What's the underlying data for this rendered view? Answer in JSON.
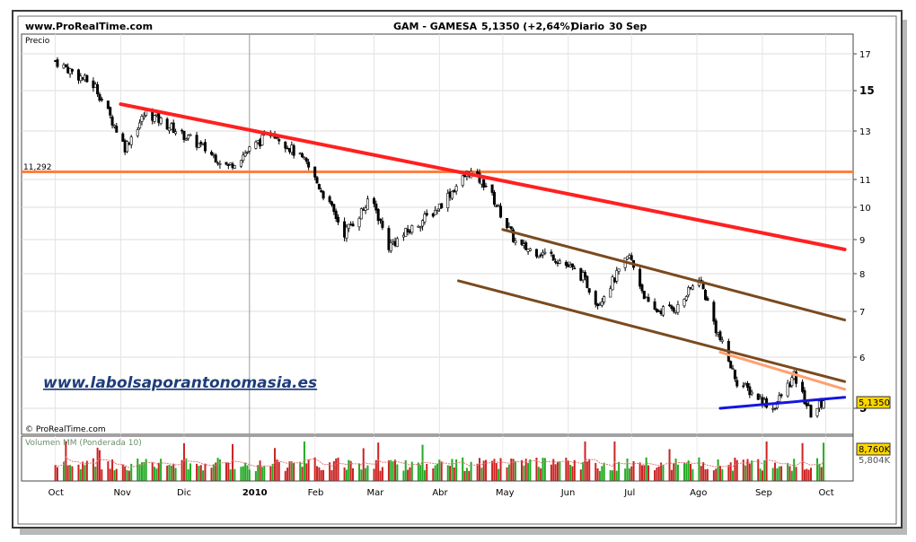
{
  "header": {
    "site": "www.ProRealTime.com",
    "instrument": "GAM - GAMESA",
    "price_change": "5,1350 (+2,64%)",
    "period": "Diario",
    "date": "30 Sep"
  },
  "main_panel": {
    "label": "Precio",
    "watermark": "www.labolsaporantonomasia.es",
    "credit": "© ProRealTime.com",
    "level_label": "11,292",
    "price_box": "5,1350"
  },
  "volume_panel": {
    "label": "Volumen MM (Ponderada 10)",
    "volume_box": "8,760K",
    "avg_label": "5,804K"
  },
  "colors": {
    "frame": "#3a3a3a",
    "background": "#ffffff",
    "bull_candle": "#009900",
    "bear_candle": "#000000",
    "vol_up": "#22aa22",
    "vol_down": "#cc2222",
    "vol_avg": "#e07878",
    "trend_red": "#ff2020",
    "support_orange": "#ff7f3f",
    "channel_brown": "#7a4a1e",
    "short_trend_orange": "#ffa070",
    "support_blue": "#1515e0",
    "price_box_bg": "#ffd700",
    "volume_box_bg": "#ffd700",
    "watermark_color": "#1f3d7a"
  },
  "chart_data": {
    "type": "candlestick",
    "title": "GAM - GAMESA 5,1350 (+2,64%) Diario 30 Sep",
    "ylabel": "Precio",
    "yscale": "log",
    "yticks": [
      5,
      6,
      7,
      8,
      9,
      10,
      11,
      13,
      15,
      17
    ],
    "ylim": [
      4.7,
      18
    ],
    "xlabels": [
      "Oct",
      "Nov",
      "Dic",
      "2010",
      "Feb",
      "Mar",
      "Abr",
      "May",
      "Jun",
      "Jul",
      "Ago",
      "Sep",
      "Oct"
    ],
    "grid": true,
    "last_price": 5.135,
    "change_pct": 2.64,
    "series_anchors": [
      {
        "x": "2009-10-01",
        "close": 16.6
      },
      {
        "x": "2009-10-20",
        "close": 15.2
      },
      {
        "x": "2009-11-03",
        "close": 12.3
      },
      {
        "x": "2009-11-13",
        "close": 13.9
      },
      {
        "x": "2009-12-08",
        "close": 12.4
      },
      {
        "x": "2009-12-22",
        "close": 11.5
      },
      {
        "x": "2010-01-12",
        "close": 13.0
      },
      {
        "x": "2010-01-28",
        "close": 11.6
      },
      {
        "x": "2010-02-15",
        "close": 9.2
      },
      {
        "x": "2010-02-28",
        "close": 10.3
      },
      {
        "x": "2010-03-08",
        "close": 8.8
      },
      {
        "x": "2010-03-30",
        "close": 9.9
      },
      {
        "x": "2010-04-15",
        "close": 11.3
      },
      {
        "x": "2010-04-23",
        "close": 10.8
      },
      {
        "x": "2010-05-08",
        "close": 8.8
      },
      {
        "x": "2010-05-25",
        "close": 8.5
      },
      {
        "x": "2010-06-08",
        "close": 7.9
      },
      {
        "x": "2010-06-15",
        "close": 7.2
      },
      {
        "x": "2010-06-30",
        "close": 8.5
      },
      {
        "x": "2010-07-10",
        "close": 7.0
      },
      {
        "x": "2010-07-23",
        "close": 7.1
      },
      {
        "x": "2010-08-02",
        "close": 7.9
      },
      {
        "x": "2010-08-10",
        "close": 6.6
      },
      {
        "x": "2010-08-20",
        "close": 5.5
      },
      {
        "x": "2010-09-06",
        "close": 5.0
      },
      {
        "x": "2010-09-16",
        "close": 5.6
      },
      {
        "x": "2010-09-24",
        "close": 4.9
      },
      {
        "x": "2010-09-30",
        "close": 5.135
      }
    ],
    "annotations": {
      "horizontal_level": 11.292,
      "lines": [
        {
          "name": "red-downtrend",
          "from": {
            "x": "2009-11-01",
            "y": 14.3
          },
          "to": {
            "x": "2010-10-10",
            "y": 8.7
          }
        },
        {
          "name": "channel-upper",
          "from": {
            "x": "2010-05-01",
            "y": 9.3
          },
          "to": {
            "x": "2010-10-10",
            "y": 6.8
          }
        },
        {
          "name": "channel-lower",
          "from": {
            "x": "2010-04-10",
            "y": 7.8
          },
          "to": {
            "x": "2010-10-10",
            "y": 5.5
          }
        },
        {
          "name": "short-downtrend",
          "from": {
            "x": "2010-08-12",
            "y": 6.1
          },
          "to": {
            "x": "2010-10-10",
            "y": 5.35
          }
        },
        {
          "name": "blue-support",
          "from": {
            "x": "2010-08-12",
            "y": 5.0
          },
          "to": {
            "x": "2010-10-10",
            "y": 5.2
          }
        }
      ]
    },
    "volume": {
      "label": "Volumen MM (Ponderada 10)",
      "last_volume": "8,760K",
      "moving_average": "5,804K"
    }
  }
}
